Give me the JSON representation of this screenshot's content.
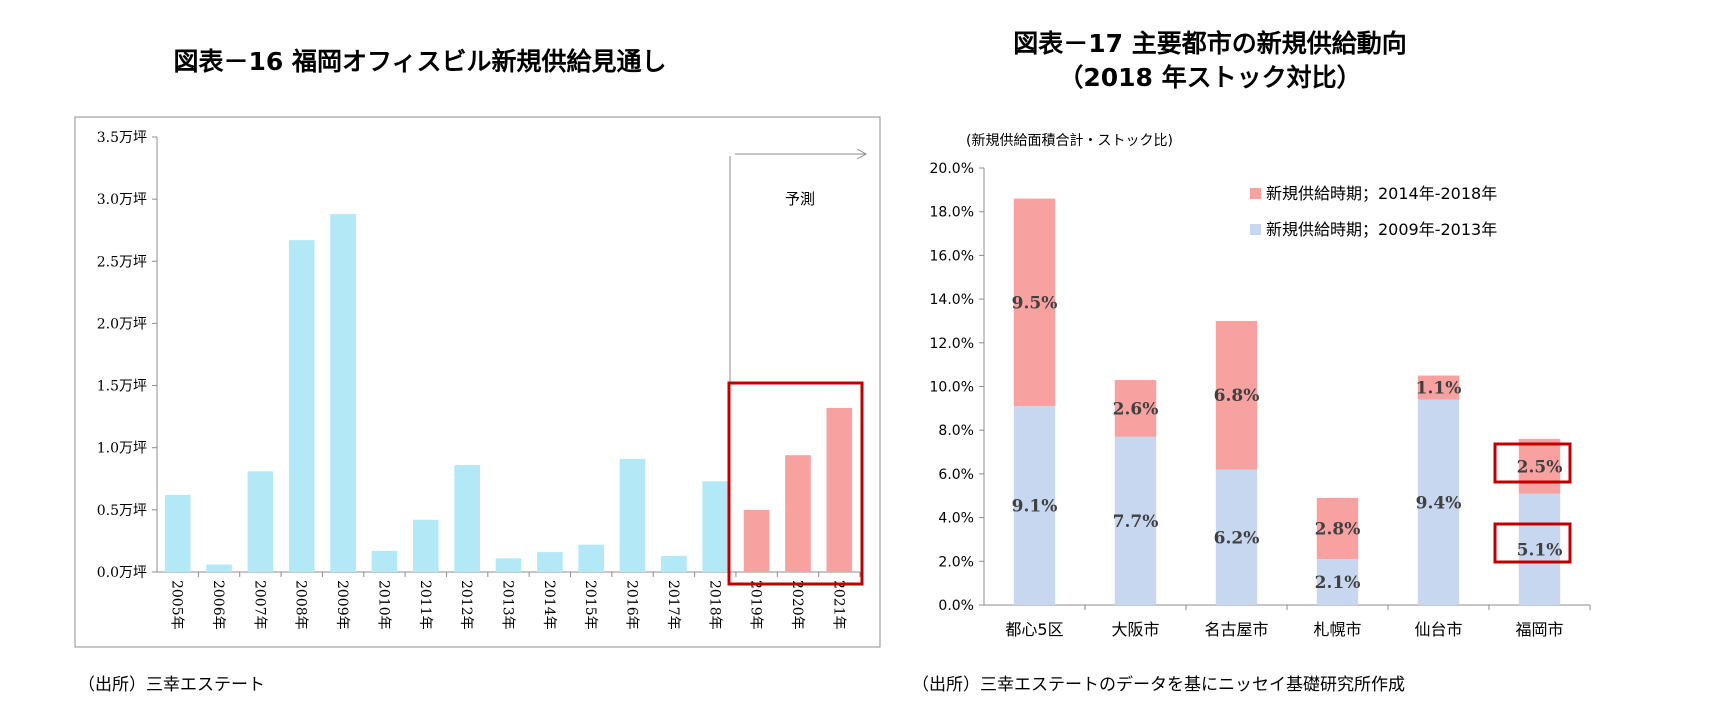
{
  "left": {
    "title": "図表－16 福岡オフィスビル新規供給見通し",
    "source": "（出所）三幸エステート",
    "forecast_label": "予測"
  },
  "right": {
    "title_line1": "図表－17 主要都市の新規供給動向",
    "title_line2": "（2018 年ストック対比）",
    "subtitle": "(新規供給面積合計・ストック比)",
    "source": "（出所）三幸エステートのデータを基にニッセイ基礎研究所作成"
  },
  "colors": {
    "actual": "#b3e8f7",
    "forecast": "#f7a1a1",
    "recent": "#f7a1a1",
    "earlier": "#c7d7ef",
    "highlight": "#c00000"
  },
  "chart_data": [
    {
      "type": "bar",
      "categories": [
        "2005年",
        "2006年",
        "2007年",
        "2008年",
        "2009年",
        "2010年",
        "2011年",
        "2012年",
        "2013年",
        "2014年",
        "2015年",
        "2016年",
        "2017年",
        "2018年",
        "2019年",
        "2020年",
        "2021年"
      ],
      "values": [
        0.62,
        0.06,
        0.81,
        2.67,
        2.88,
        0.17,
        0.42,
        0.86,
        0.11,
        0.16,
        0.22,
        0.91,
        0.13,
        0.73,
        0.5,
        0.94,
        1.32
      ],
      "forecast_flags": [
        false,
        false,
        false,
        false,
        false,
        false,
        false,
        false,
        false,
        false,
        false,
        false,
        false,
        false,
        true,
        true,
        true
      ],
      "ylim": [
        0,
        3.5
      ],
      "yticks": [
        0,
        0.5,
        1.0,
        1.5,
        2.0,
        2.5,
        3.0,
        3.5
      ],
      "ytick_labels": [
        "0.0万坪",
        "0.5万坪",
        "1.0万坪",
        "1.5万坪",
        "2.0万坪",
        "2.5万坪",
        "3.0万坪",
        "3.5万坪"
      ],
      "grid": false
    },
    {
      "type": "bar",
      "stacked": true,
      "categories": [
        "都心5区",
        "大阪市",
        "名古屋市",
        "札幌市",
        "仙台市",
        "福岡市"
      ],
      "series": [
        {
          "name": "新規供給時期；2009年-2013年",
          "values": [
            9.1,
            7.7,
            6.2,
            2.1,
            9.4,
            5.1
          ],
          "labels": [
            "9.1%",
            "7.7%",
            "6.2%",
            "2.1%",
            "9.4%",
            "5.1%"
          ]
        },
        {
          "name": "新規供給時期；2014年-2018年",
          "values": [
            9.5,
            2.6,
            6.8,
            2.8,
            1.1,
            2.5
          ],
          "labels": [
            "9.5%",
            "2.6%",
            "6.8%",
            "2.8%",
            "1.1%",
            "2.5%"
          ]
        }
      ],
      "ylim": [
        0,
        20
      ],
      "yticks": [
        0,
        2,
        4,
        6,
        8,
        10,
        12,
        14,
        16,
        18,
        20
      ],
      "ytick_labels": [
        "0.0%",
        "2.0%",
        "4.0%",
        "6.0%",
        "8.0%",
        "10.0%",
        "12.0%",
        "14.0%",
        "16.0%",
        "18.0%",
        "20.0%"
      ],
      "legend_position": "top-right",
      "grid": false
    }
  ]
}
